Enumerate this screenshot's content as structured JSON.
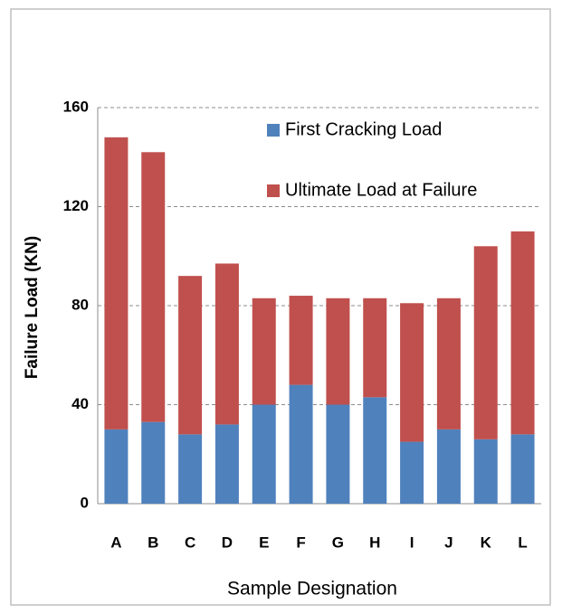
{
  "chart_data": {
    "type": "stacked_bar",
    "categories": [
      "A",
      "B",
      "C",
      "D",
      "E",
      "F",
      "G",
      "H",
      "I",
      "J",
      "K",
      "L"
    ],
    "series": [
      {
        "name": "First Cracking Load",
        "color": "#4f81bd",
        "values": [
          30,
          33,
          28,
          32,
          40,
          48,
          40,
          43,
          25,
          30,
          26,
          28
        ]
      },
      {
        "name": "Ultimate Load at Failure",
        "color": "#c0504d",
        "values": [
          118,
          109,
          64,
          65,
          43,
          36,
          43,
          40,
          56,
          53,
          78,
          82
        ]
      }
    ],
    "x_label": "Sample Designation",
    "y_label": "Failure Load (KN)",
    "ylim": [
      0,
      160
    ],
    "yticks": [
      0,
      40,
      80,
      120,
      160
    ],
    "grid": true
  }
}
